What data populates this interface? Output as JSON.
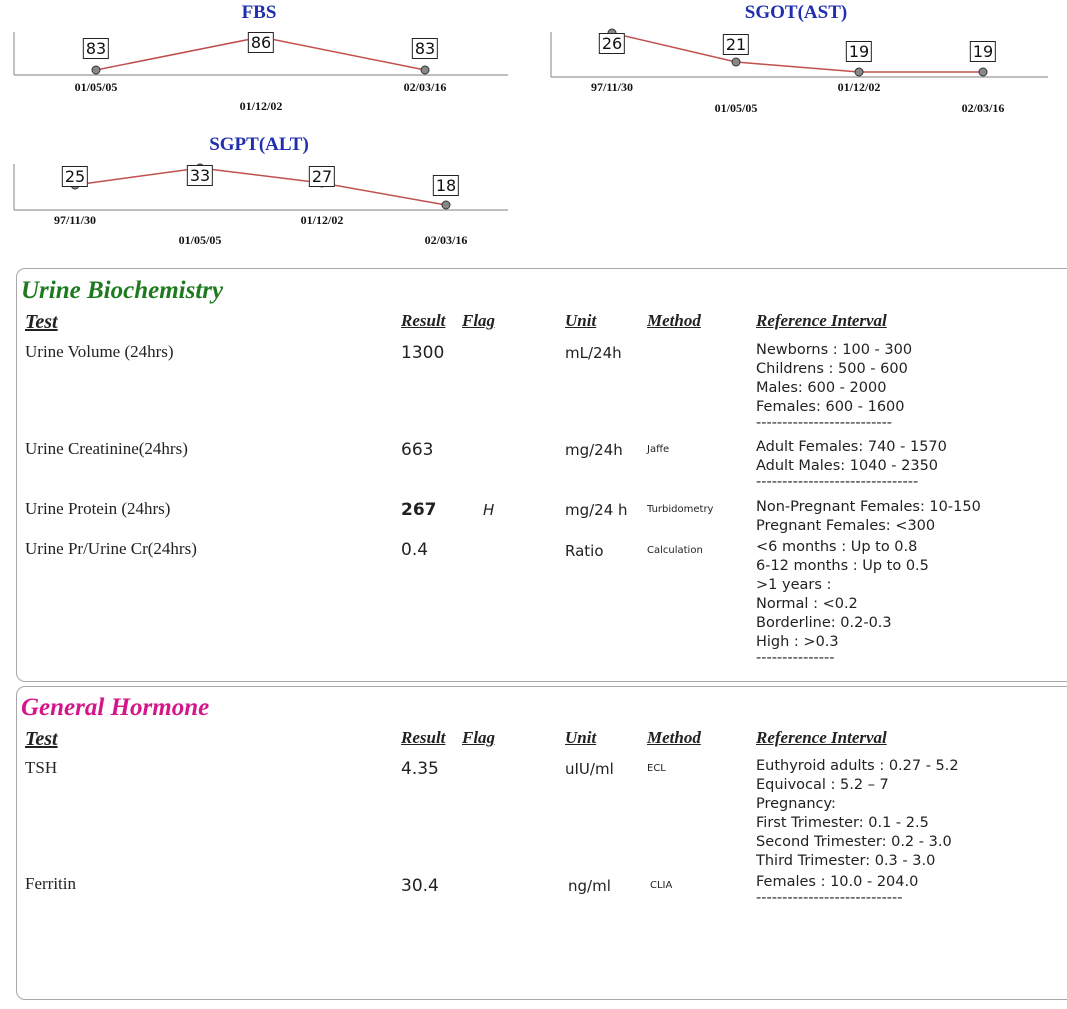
{
  "charts": {
    "fbs": {
      "title": "FBS",
      "points": [
        {
          "value": "83",
          "date": "01/05/05"
        },
        {
          "value": "86",
          "date": "01/12/02"
        },
        {
          "value": "83",
          "date": "02/03/16"
        }
      ]
    },
    "sgot": {
      "title": "SGOT(AST)",
      "points": [
        {
          "value": "26",
          "date": "97/11/30"
        },
        {
          "value": "21",
          "date": "01/05/05"
        },
        {
          "value": "19",
          "date": "01/12/02"
        },
        {
          "value": "19",
          "date": "02/03/16"
        }
      ]
    },
    "sgpt": {
      "title": "SGPT(ALT)",
      "points": [
        {
          "value": "25",
          "date": "97/11/30"
        },
        {
          "value": "33",
          "date": "01/05/05"
        },
        {
          "value": "27",
          "date": "01/12/02"
        },
        {
          "value": "18",
          "date": "02/03/16"
        }
      ]
    },
    "line_color": "#c0504d",
    "title_color": "#1f2fb0"
  },
  "headers": {
    "test": "Test",
    "result": "Result",
    "flag": "Flag",
    "unit": "Unit",
    "method": "Method",
    "reference": "Reference Interval"
  },
  "urine": {
    "title": "Urine Biochemistry",
    "title_color": "#1e7a1e",
    "rows": [
      {
        "test": "Urine Volume (24hrs)",
        "result": "1300",
        "flag": "",
        "unit": "mL/24h",
        "method": "",
        "reference": [
          "Newborns : 100 - 300",
          "Childrens : 500 - 600",
          "Males: 600 - 2000",
          "Females: 600 - 1600",
          "--------------------------"
        ]
      },
      {
        "test": "Urine Creatinine(24hrs)",
        "result": "663",
        "flag": "",
        "unit": "mg/24h",
        "method": "Jaffe",
        "reference": [
          "Adult Females: 740 - 1570",
          "Adult Males: 1040 - 2350",
          "-------------------------------"
        ]
      },
      {
        "test": "Urine Protein (24hrs)",
        "result": "267",
        "flag": "H",
        "unit": "mg/24 h",
        "method": "Turbidometry",
        "reference": [
          "Non-Pregnant Females: 10-150",
          "Pregnant Females: <300"
        ]
      },
      {
        "test": "Urine Pr/Urine Cr(24hrs)",
        "result": "0.4",
        "flag": "",
        "unit": "Ratio",
        "method": "Calculation",
        "reference": [
          "<6 months : Up to 0.8",
          "6-12 months : Up to 0.5",
          ">1 years :",
          "Normal : <0.2",
          "Borderline: 0.2-0.3",
          "High : >0.3",
          "---------------"
        ]
      }
    ]
  },
  "hormone": {
    "title": "General Hormone",
    "title_color": "#d4168a",
    "rows": [
      {
        "test": "TSH",
        "result": "4.35",
        "flag": "",
        "unit": "uIU/ml",
        "method": "ECL",
        "reference": [
          "Euthyroid adults : 0.27 - 5.2",
          "Equivocal : 5.2 – 7",
          "Pregnancy:",
          "First Trimester: 0.1 - 2.5",
          "Second Trimester: 0.2 - 3.0",
          "Third Trimester: 0.3 - 3.0"
        ]
      },
      {
        "test": "Ferritin",
        "result": "30.4",
        "flag": "",
        "unit": "ng/ml",
        "method": "CLIA",
        "reference": [
          "Females : 10.0 - 204.0",
          "----------------------------"
        ]
      }
    ]
  }
}
